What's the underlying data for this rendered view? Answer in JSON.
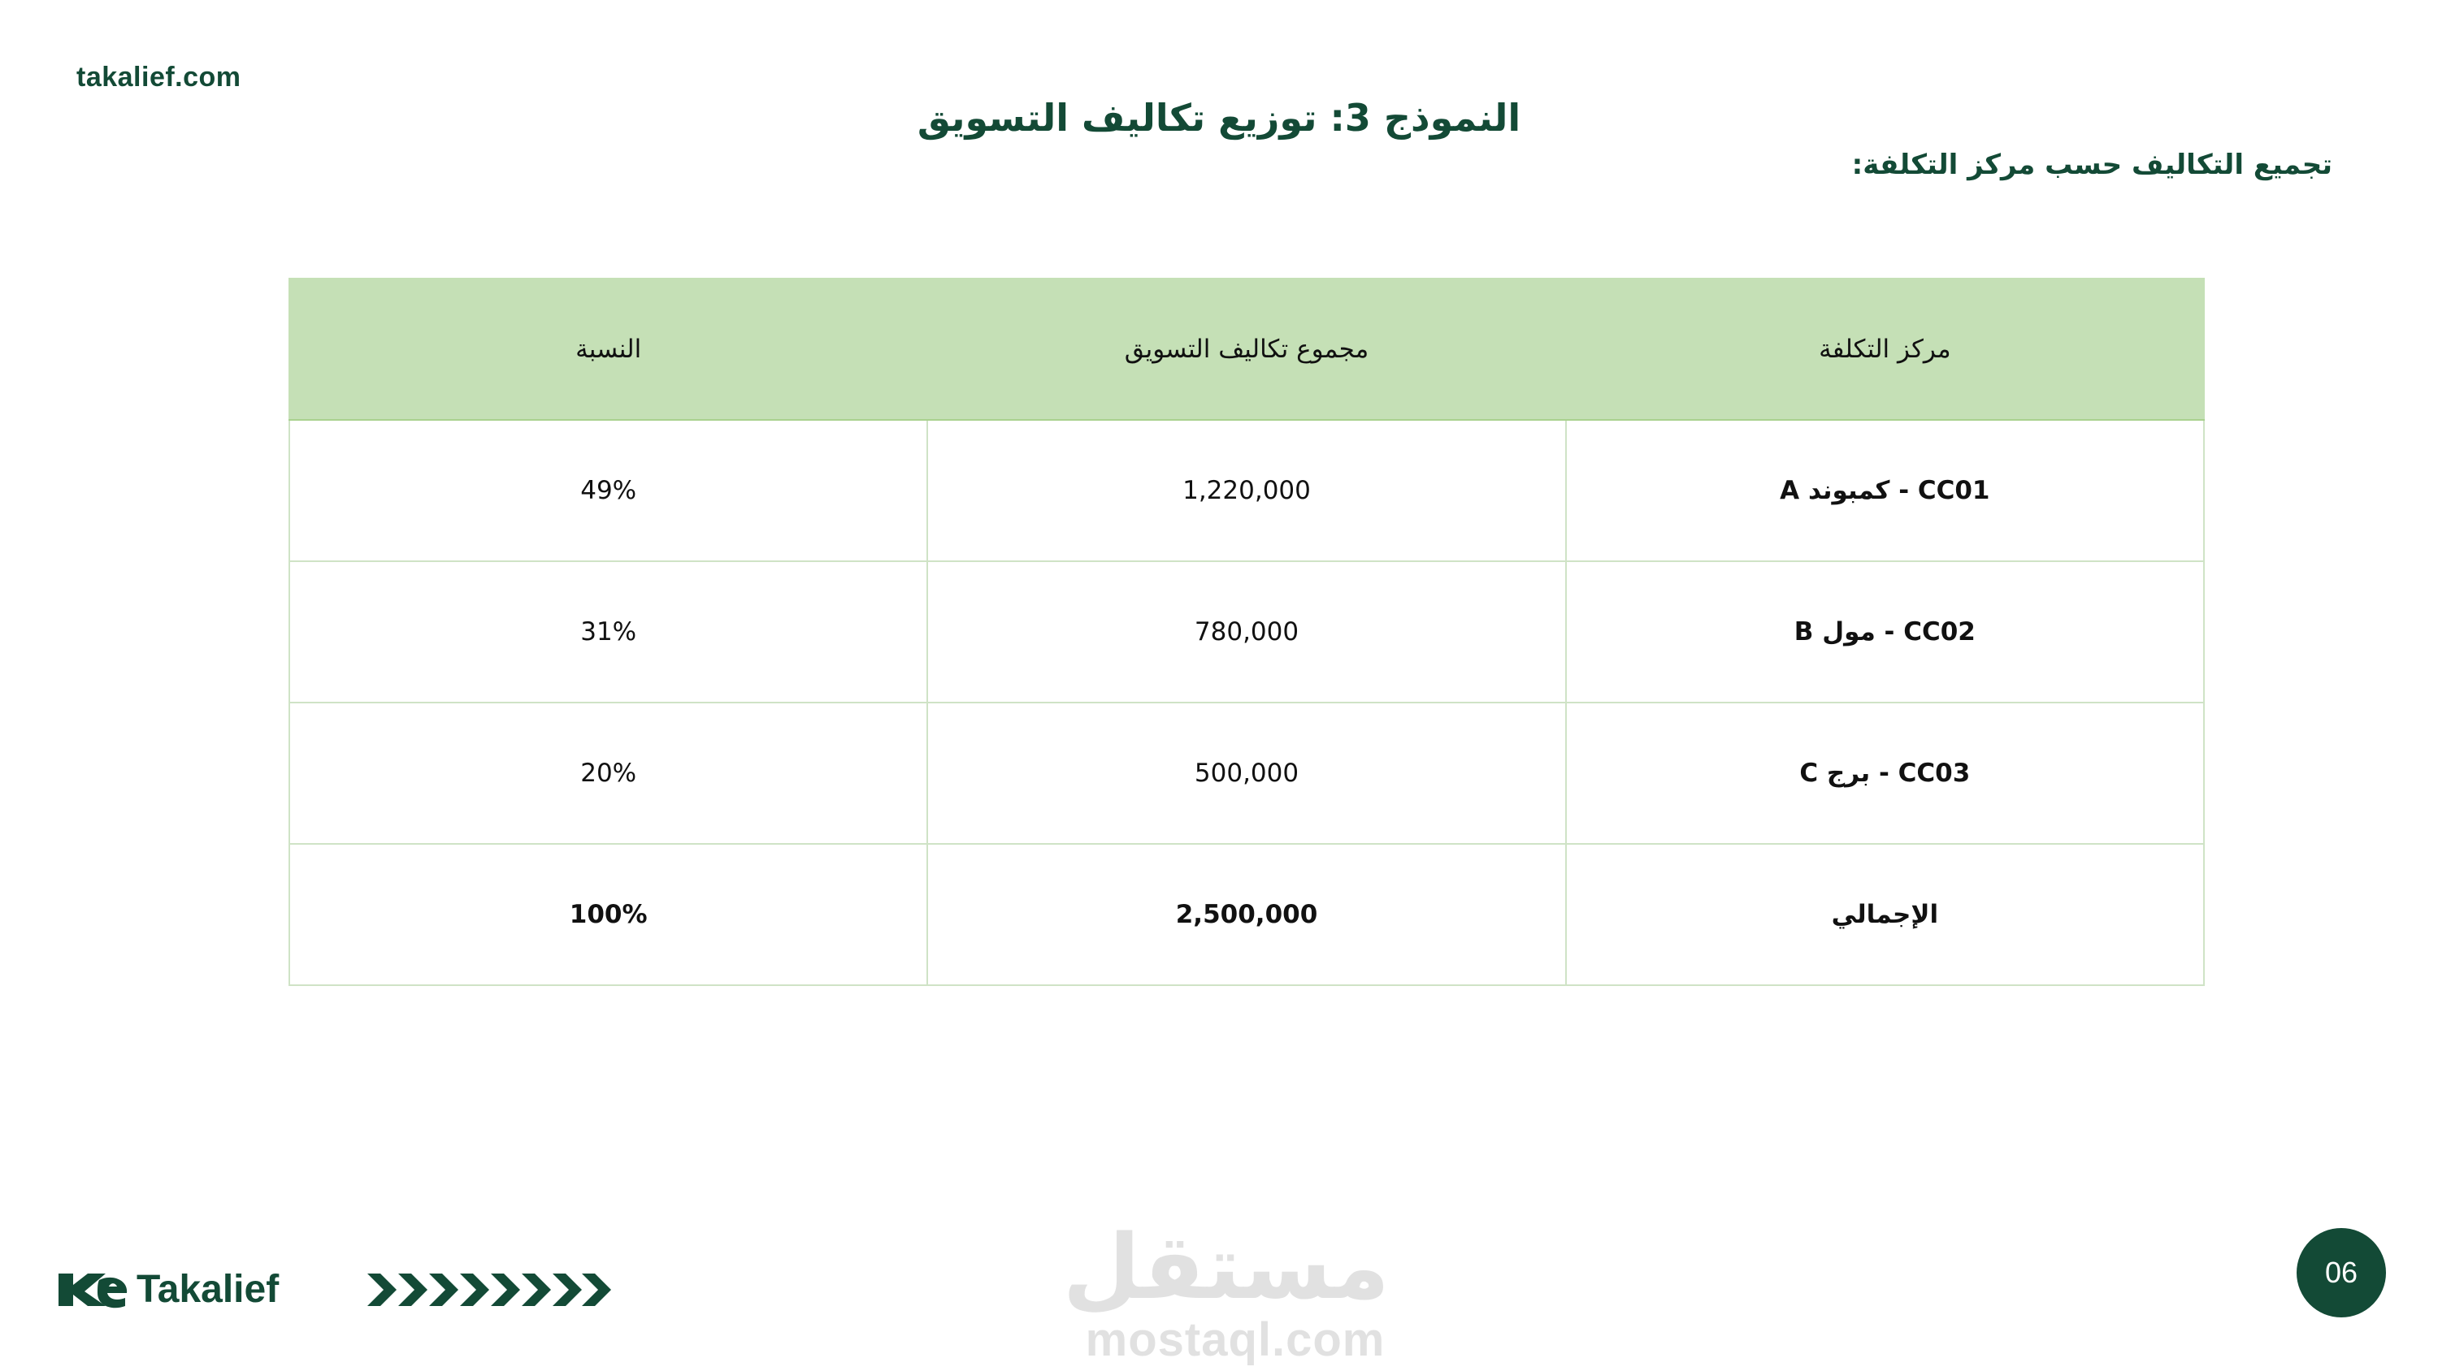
{
  "header": {
    "site_url": "takalief.com",
    "title": "النموذج 3: توزيع تكاليف التسويق",
    "subtitle": "تجميع التكاليف حسب مركز التكلفة:"
  },
  "table": {
    "columns": [
      "مركز التكلفة",
      "مجموع تكاليف التسويق",
      "النسبة"
    ],
    "rows": [
      {
        "center": "CC01 - كمبوند A",
        "total": "1,220,000",
        "share": "49%"
      },
      {
        "center": "CC02 - مول B",
        "total": "780,000",
        "share": "31%"
      },
      {
        "center": "CC03 - برج C",
        "total": "500,000",
        "share": "20%"
      }
    ],
    "total_row": {
      "center": "الإجمالي",
      "total": "2,500,000",
      "share": "100%"
    }
  },
  "footer": {
    "logo_text": "Takalief",
    "watermark_arabic": "مستقل",
    "watermark_latin": "mostaql.com",
    "page_number": "06"
  },
  "colors": {
    "brand_green": "#134a36",
    "header_fill": "#c5e0b6",
    "border": "#cfe3c6"
  }
}
